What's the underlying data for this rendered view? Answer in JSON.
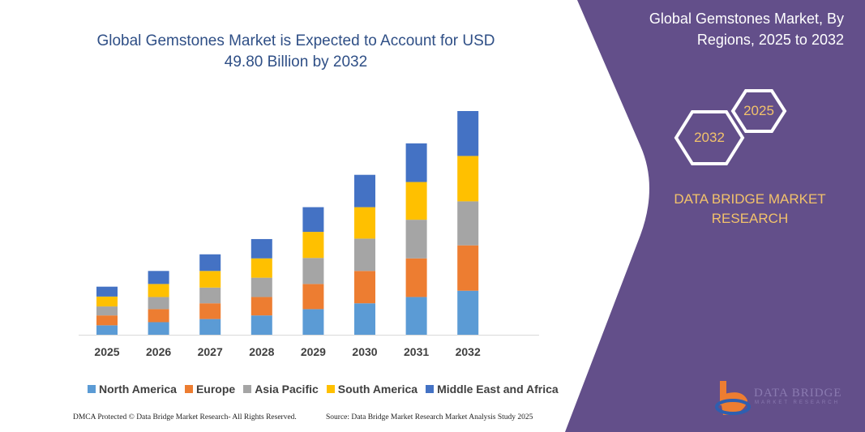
{
  "chart_data": {
    "type": "bar",
    "stacked": true,
    "title": "Global Gemstones Market is Expected to Account for USD 49.80 Billion by 2032",
    "categories": [
      "2025",
      "2026",
      "2027",
      "2028",
      "2029",
      "2030",
      "2031",
      "2032"
    ],
    "series": [
      {
        "name": "North America",
        "color": "#5b9bd5",
        "values": [
          2.1,
          2.8,
          3.5,
          4.3,
          5.7,
          7.0,
          8.4,
          9.8
        ]
      },
      {
        "name": "Europe",
        "color": "#ed7d31",
        "values": [
          2.2,
          2.9,
          3.5,
          4.1,
          5.6,
          7.2,
          8.6,
          10.1
        ]
      },
      {
        "name": "Asia Pacific",
        "color": "#a5a5a5",
        "values": [
          2.0,
          2.7,
          3.5,
          4.3,
          5.8,
          7.2,
          8.6,
          9.8
        ]
      },
      {
        "name": "South America",
        "color": "#ffc000",
        "values": [
          2.2,
          2.9,
          3.7,
          4.3,
          5.8,
          7.0,
          8.4,
          10.1
        ]
      },
      {
        "name": "Middle East and Africa",
        "color": "#4472c4",
        "values": [
          2.2,
          2.9,
          3.7,
          4.3,
          5.5,
          7.2,
          8.6,
          10.0
        ]
      }
    ],
    "xlabel": "",
    "ylabel": "",
    "ylim": [
      0,
      49.8
    ],
    "grid": false,
    "legend_position": "bottom"
  },
  "panel": {
    "title": "Global Gemstones Market, By Regions, 2025 to 2032",
    "hex_start": "2025",
    "hex_end": "2032",
    "brand": "DATA BRIDGE MARKET RESEARCH",
    "logo_text": "DATA BRIDGE",
    "logo_sub": "MARKET RESEARCH",
    "color": "#634f8a",
    "accent": "#f2c26b"
  },
  "footer": {
    "left": "DMCA Protected © Data Bridge Market Research- All Rights Reserved.",
    "right": "Source: Data Bridge Market Research Market Analysis Study 2025"
  }
}
